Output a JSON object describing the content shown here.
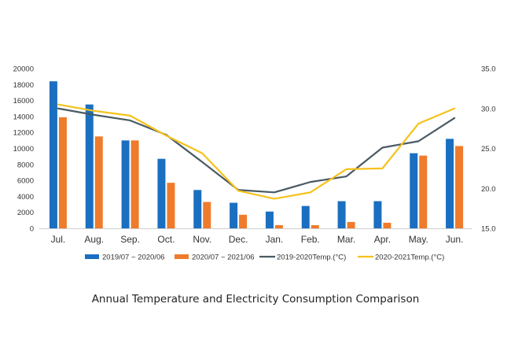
{
  "caption": "Annual Temperature and Electricity Consumption Comparison",
  "chart_data": {
    "type": "bar",
    "title": "Annual Temperature and Electricity Consumption Comparison",
    "categories": [
      "Jul.",
      "Aug.",
      "Sep.",
      "Oct.",
      "Nov.",
      "Dec.",
      "Jan.",
      "Feb.",
      "Mar.",
      "Apr.",
      "May.",
      "Jun."
    ],
    "ylim": [
      0,
      20000
    ],
    "y_ticks": [
      0,
      2000,
      4000,
      6000,
      8000,
      10000,
      12000,
      14000,
      16000,
      18000,
      20000
    ],
    "y2lim": [
      15,
      35
    ],
    "y2_ticks": [
      "15.0",
      "20.0",
      "25.0",
      "30.0",
      "35.0"
    ],
    "grid": false,
    "legend_position": "bottom",
    "series": [
      {
        "name": "2019/07 ~ 2020/06",
        "type": "bar",
        "axis": "left",
        "color": "#1a6fc0",
        "values": [
          18400,
          15500,
          11000,
          8700,
          4800,
          3200,
          2100,
          2800,
          3400,
          3400,
          9400,
          11200
        ]
      },
      {
        "name": "2020/07 ~ 2021/06",
        "type": "bar",
        "axis": "left",
        "color": "#ef7b2c",
        "values": [
          13900,
          11500,
          11000,
          5700,
          3300,
          1700,
          400,
          400,
          800,
          700,
          9100,
          10300
        ]
      },
      {
        "name": "2019-2020Temp.(°C)",
        "type": "line",
        "axis": "right",
        "color": "#4a5a63",
        "values": [
          30.0,
          29.2,
          28.5,
          26.7,
          23.3,
          19.8,
          19.5,
          20.8,
          21.5,
          25.1,
          25.9,
          28.8
        ]
      },
      {
        "name": "2020-2021Temp.(°C)",
        "type": "line",
        "axis": "right",
        "color": "#f5c21b",
        "values": [
          30.5,
          29.7,
          29.1,
          26.6,
          24.4,
          19.7,
          18.7,
          19.5,
          22.4,
          22.5,
          28.1,
          30.0
        ]
      }
    ]
  }
}
